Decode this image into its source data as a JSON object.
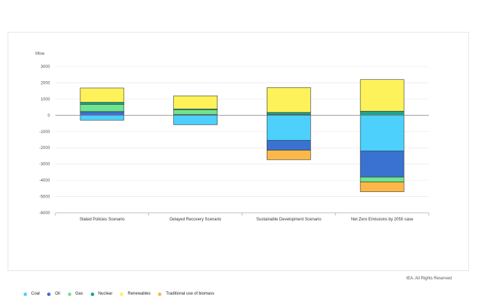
{
  "credit": "IEA. All Rights Reserved",
  "chart_data": {
    "type": "bar",
    "stacked": true,
    "ylabel": "Mtoe",
    "ylim": [
      -6000,
      3000
    ],
    "yticks": [
      3000,
      2000,
      1000,
      0,
      -1000,
      -2000,
      -3000,
      -4000,
      -5000,
      -6000
    ],
    "grid": true,
    "legend_position": "bottom-left",
    "categories": [
      "Stated Policies Scenario",
      "Delayed Recovery Scenario",
      "Sustainable Development Scenario",
      "Net Zero Emissions by 2050 case"
    ],
    "series": [
      {
        "name": "Coal",
        "color": "#4dd0fb",
        "values": [
          -300,
          -580,
          -1550,
          -2200
        ]
      },
      {
        "name": "Oil",
        "color": "#3a72d1",
        "values": [
          230,
          50,
          -600,
          -1600
        ]
      },
      {
        "name": "Gas",
        "color": "#6ee58f",
        "values": [
          450,
          300,
          30,
          -300
        ]
      },
      {
        "name": "Nuclear",
        "color": "#1aa58f",
        "values": [
          120,
          40,
          150,
          250
        ]
      },
      {
        "name": "Renewables",
        "color": "#fdf25a",
        "values": [
          880,
          810,
          1530,
          1950
        ]
      },
      {
        "name": "Traditional use of biomass",
        "color": "#fbb848",
        "values": [
          0,
          0,
          -580,
          -600
        ]
      }
    ]
  }
}
